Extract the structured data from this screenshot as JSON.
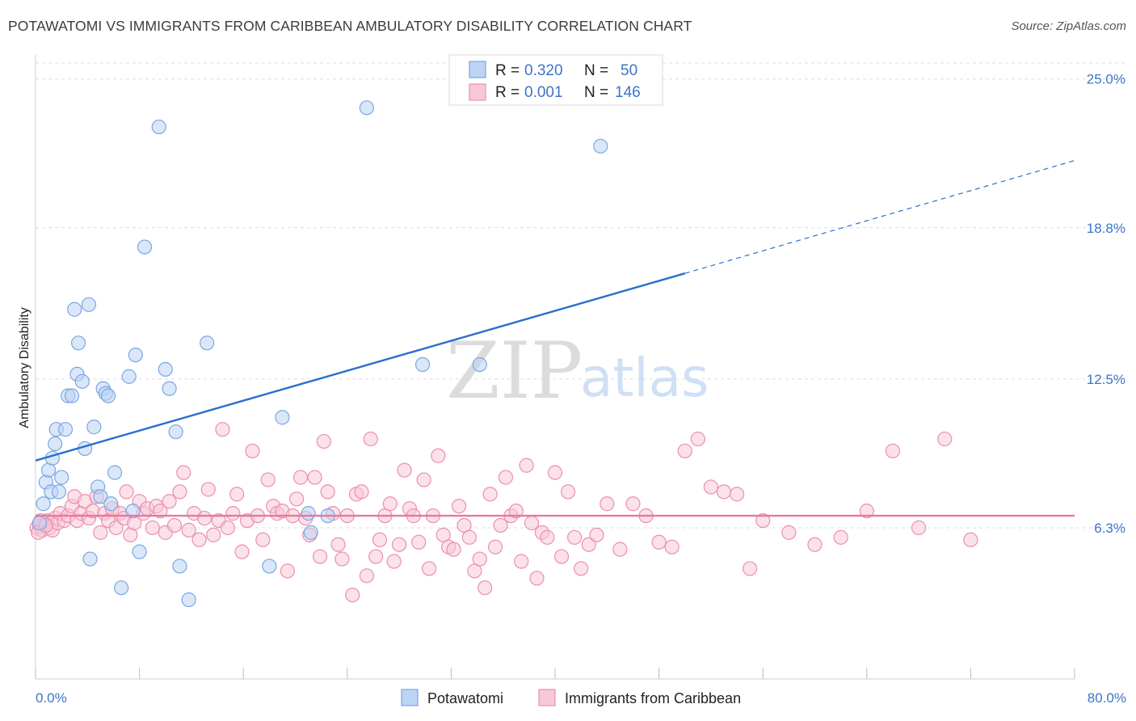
{
  "title": "POTAWATOMI VS IMMIGRANTS FROM CARIBBEAN AMBULATORY DISABILITY CORRELATION CHART",
  "source": "Source: ZipAtlas.com",
  "watermark": {
    "part1": "ZIP",
    "part2": "atlas"
  },
  "legend": {
    "rows": [
      {
        "r_label": "R =",
        "r_value": "0.320",
        "n_label": "N =",
        "n_value": "50"
      },
      {
        "r_label": "R =",
        "r_value": "0.001",
        "n_label": "N =",
        "n_value": "146"
      }
    ]
  },
  "colors": {
    "blue_fill": "#bcd3f4",
    "blue_stroke": "#7aa7e3",
    "blue_line": "#2a6fce",
    "pink_fill": "#f8c8d7",
    "pink_stroke": "#ec8fae",
    "pink_line": "#e8779c",
    "tick_text": "#3d74c7",
    "grid": "#dcdcdc"
  },
  "chart_data": {
    "type": "scatter",
    "title": "POTAWATOMI VS IMMIGRANTS FROM CARIBBEAN AMBULATORY DISABILITY CORRELATION CHART",
    "xlabel": "",
    "ylabel": "Ambulatory Disability",
    "xlim": [
      0,
      80
    ],
    "ylim": [
      0,
      26
    ],
    "x_tick_labels": [
      "0.0%",
      "80.0%"
    ],
    "y_ticks": [
      6.3,
      12.5,
      18.8,
      25.0
    ],
    "y_tick_labels": [
      "6.3%",
      "12.5%",
      "18.8%",
      "25.0%"
    ],
    "grid": true,
    "legend_position": "top-center",
    "series": [
      {
        "name": "Potawatomi",
        "color": "#7aa7e3",
        "trend": {
          "x": [
            0,
            50
          ],
          "y": [
            9.1,
            16.9
          ],
          "dashed_extension": {
            "x": [
              50,
              80
            ],
            "y": [
              16.9,
              21.6
            ]
          }
        },
        "points": [
          [
            0.3,
            6.5
          ],
          [
            0.6,
            7.3
          ],
          [
            0.8,
            8.2
          ],
          [
            1.0,
            8.7
          ],
          [
            1.2,
            7.8
          ],
          [
            1.3,
            9.2
          ],
          [
            1.5,
            9.8
          ],
          [
            1.6,
            10.4
          ],
          [
            1.8,
            7.8
          ],
          [
            2.0,
            8.4
          ],
          [
            2.3,
            10.4
          ],
          [
            2.5,
            11.8
          ],
          [
            2.8,
            11.8
          ],
          [
            3.0,
            15.4
          ],
          [
            3.2,
            12.7
          ],
          [
            3.3,
            14.0
          ],
          [
            3.6,
            12.4
          ],
          [
            3.8,
            9.6
          ],
          [
            4.1,
            15.6
          ],
          [
            4.2,
            5.0
          ],
          [
            4.5,
            10.5
          ],
          [
            4.8,
            8.0
          ],
          [
            5.0,
            7.6
          ],
          [
            5.2,
            12.1
          ],
          [
            5.4,
            11.9
          ],
          [
            5.6,
            11.8
          ],
          [
            5.8,
            7.3
          ],
          [
            6.1,
            8.6
          ],
          [
            6.6,
            3.8
          ],
          [
            7.2,
            12.6
          ],
          [
            7.5,
            7.0
          ],
          [
            7.7,
            13.5
          ],
          [
            8.0,
            5.3
          ],
          [
            8.4,
            18.0
          ],
          [
            9.5,
            23.0
          ],
          [
            10.0,
            12.9
          ],
          [
            10.3,
            12.1
          ],
          [
            10.8,
            10.3
          ],
          [
            11.1,
            4.7
          ],
          [
            11.8,
            3.3
          ],
          [
            13.2,
            14.0
          ],
          [
            18.0,
            4.7
          ],
          [
            19.0,
            10.9
          ],
          [
            21.0,
            6.9
          ],
          [
            21.2,
            6.1
          ],
          [
            22.5,
            6.8
          ],
          [
            25.5,
            23.8
          ],
          [
            29.8,
            13.1
          ],
          [
            34.2,
            13.1
          ],
          [
            43.5,
            22.2
          ]
        ]
      },
      {
        "name": "Immigrants from Caribbean",
        "color": "#ec8fae",
        "trend": {
          "x": [
            0,
            80
          ],
          "y": [
            6.8,
            6.8
          ]
        },
        "points": [
          [
            0.1,
            6.3
          ],
          [
            0.3,
            6.4
          ],
          [
            0.5,
            6.2
          ],
          [
            0.7,
            6.5
          ],
          [
            0.9,
            6.6
          ],
          [
            1.1,
            6.3
          ],
          [
            1.3,
            6.2
          ],
          [
            1.5,
            6.7
          ],
          [
            1.7,
            6.5
          ],
          [
            1.9,
            6.9
          ],
          [
            2.2,
            6.6
          ],
          [
            2.5,
            6.8
          ],
          [
            2.8,
            7.2
          ],
          [
            3.0,
            7.6
          ],
          [
            3.2,
            6.6
          ],
          [
            3.5,
            6.9
          ],
          [
            3.8,
            7.4
          ],
          [
            4.1,
            6.7
          ],
          [
            4.4,
            7.0
          ],
          [
            4.7,
            7.6
          ],
          [
            5.0,
            6.1
          ],
          [
            5.3,
            6.9
          ],
          [
            5.6,
            6.6
          ],
          [
            5.9,
            7.1
          ],
          [
            6.2,
            6.3
          ],
          [
            6.5,
            6.9
          ],
          [
            6.8,
            6.7
          ],
          [
            7.0,
            7.8
          ],
          [
            7.3,
            6.0
          ],
          [
            7.6,
            6.5
          ],
          [
            8.0,
            7.4
          ],
          [
            8.3,
            6.9
          ],
          [
            8.6,
            7.1
          ],
          [
            9.0,
            6.3
          ],
          [
            9.3,
            7.2
          ],
          [
            9.6,
            7.0
          ],
          [
            10.0,
            6.1
          ],
          [
            10.3,
            7.4
          ],
          [
            10.7,
            6.4
          ],
          [
            11.1,
            7.8
          ],
          [
            11.4,
            8.6
          ],
          [
            11.8,
            6.2
          ],
          [
            12.2,
            6.9
          ],
          [
            12.6,
            5.8
          ],
          [
            13.0,
            6.7
          ],
          [
            13.3,
            7.9
          ],
          [
            13.7,
            6.0
          ],
          [
            14.1,
            6.6
          ],
          [
            14.4,
            10.4
          ],
          [
            14.8,
            6.3
          ],
          [
            15.2,
            6.9
          ],
          [
            15.5,
            7.7
          ],
          [
            15.9,
            5.3
          ],
          [
            16.3,
            6.6
          ],
          [
            16.7,
            9.5
          ],
          [
            17.1,
            6.8
          ],
          [
            17.5,
            5.8
          ],
          [
            17.9,
            8.3
          ],
          [
            18.3,
            7.2
          ],
          [
            18.6,
            6.9
          ],
          [
            19.0,
            7.0
          ],
          [
            19.4,
            4.5
          ],
          [
            19.8,
            6.8
          ],
          [
            20.1,
            7.5
          ],
          [
            20.4,
            8.4
          ],
          [
            20.8,
            6.7
          ],
          [
            21.1,
            6.0
          ],
          [
            21.5,
            8.4
          ],
          [
            21.9,
            5.1
          ],
          [
            22.2,
            9.9
          ],
          [
            22.5,
            7.8
          ],
          [
            22.9,
            6.9
          ],
          [
            23.3,
            5.6
          ],
          [
            23.6,
            5.0
          ],
          [
            24.0,
            6.8
          ],
          [
            24.4,
            3.5
          ],
          [
            24.7,
            7.7
          ],
          [
            25.1,
            7.8
          ],
          [
            25.5,
            4.3
          ],
          [
            25.8,
            10.0
          ],
          [
            26.2,
            5.1
          ],
          [
            26.5,
            5.8
          ],
          [
            26.9,
            6.8
          ],
          [
            27.3,
            7.3
          ],
          [
            27.6,
            4.9
          ],
          [
            28.0,
            5.6
          ],
          [
            28.4,
            8.7
          ],
          [
            28.8,
            7.1
          ],
          [
            29.1,
            6.8
          ],
          [
            29.5,
            5.7
          ],
          [
            29.9,
            8.3
          ],
          [
            30.3,
            4.6
          ],
          [
            30.6,
            6.8
          ],
          [
            31.0,
            9.3
          ],
          [
            31.4,
            6.0
          ],
          [
            31.8,
            5.5
          ],
          [
            32.2,
            5.4
          ],
          [
            32.6,
            7.2
          ],
          [
            33.0,
            6.4
          ],
          [
            33.4,
            5.9
          ],
          [
            33.8,
            4.5
          ],
          [
            34.2,
            5.0
          ],
          [
            34.6,
            3.8
          ],
          [
            35.0,
            7.7
          ],
          [
            35.4,
            5.5
          ],
          [
            35.8,
            6.4
          ],
          [
            36.2,
            8.4
          ],
          [
            36.6,
            6.8
          ],
          [
            37.0,
            7.0
          ],
          [
            37.4,
            4.9
          ],
          [
            37.8,
            8.9
          ],
          [
            38.2,
            6.5
          ],
          [
            38.6,
            4.2
          ],
          [
            39.0,
            6.1
          ],
          [
            39.4,
            5.9
          ],
          [
            40.0,
            8.6
          ],
          [
            40.5,
            5.1
          ],
          [
            41.0,
            7.8
          ],
          [
            41.5,
            5.9
          ],
          [
            42.0,
            4.6
          ],
          [
            42.6,
            5.6
          ],
          [
            43.2,
            6.0
          ],
          [
            44.0,
            7.3
          ],
          [
            45.0,
            5.4
          ],
          [
            46.0,
            7.3
          ],
          [
            47.0,
            6.8
          ],
          [
            48.0,
            5.7
          ],
          [
            49.0,
            5.5
          ],
          [
            50.0,
            9.5
          ],
          [
            51.0,
            10.0
          ],
          [
            52.0,
            8.0
          ],
          [
            53.0,
            7.8
          ],
          [
            54.0,
            7.7
          ],
          [
            55.0,
            4.6
          ],
          [
            56.0,
            6.6
          ],
          [
            58.0,
            6.1
          ],
          [
            60.0,
            5.6
          ],
          [
            62.0,
            5.9
          ],
          [
            64.0,
            7.0
          ],
          [
            66.0,
            9.5
          ],
          [
            68.0,
            6.3
          ],
          [
            70.0,
            10.0
          ],
          [
            72.0,
            5.8
          ],
          [
            0.2,
            6.1
          ],
          [
            0.4,
            6.6
          ],
          [
            0.8,
            6.4
          ]
        ]
      }
    ]
  },
  "bottom_legend": [
    {
      "label": "Potawatomi"
    },
    {
      "label": "Immigrants from Caribbean"
    }
  ]
}
